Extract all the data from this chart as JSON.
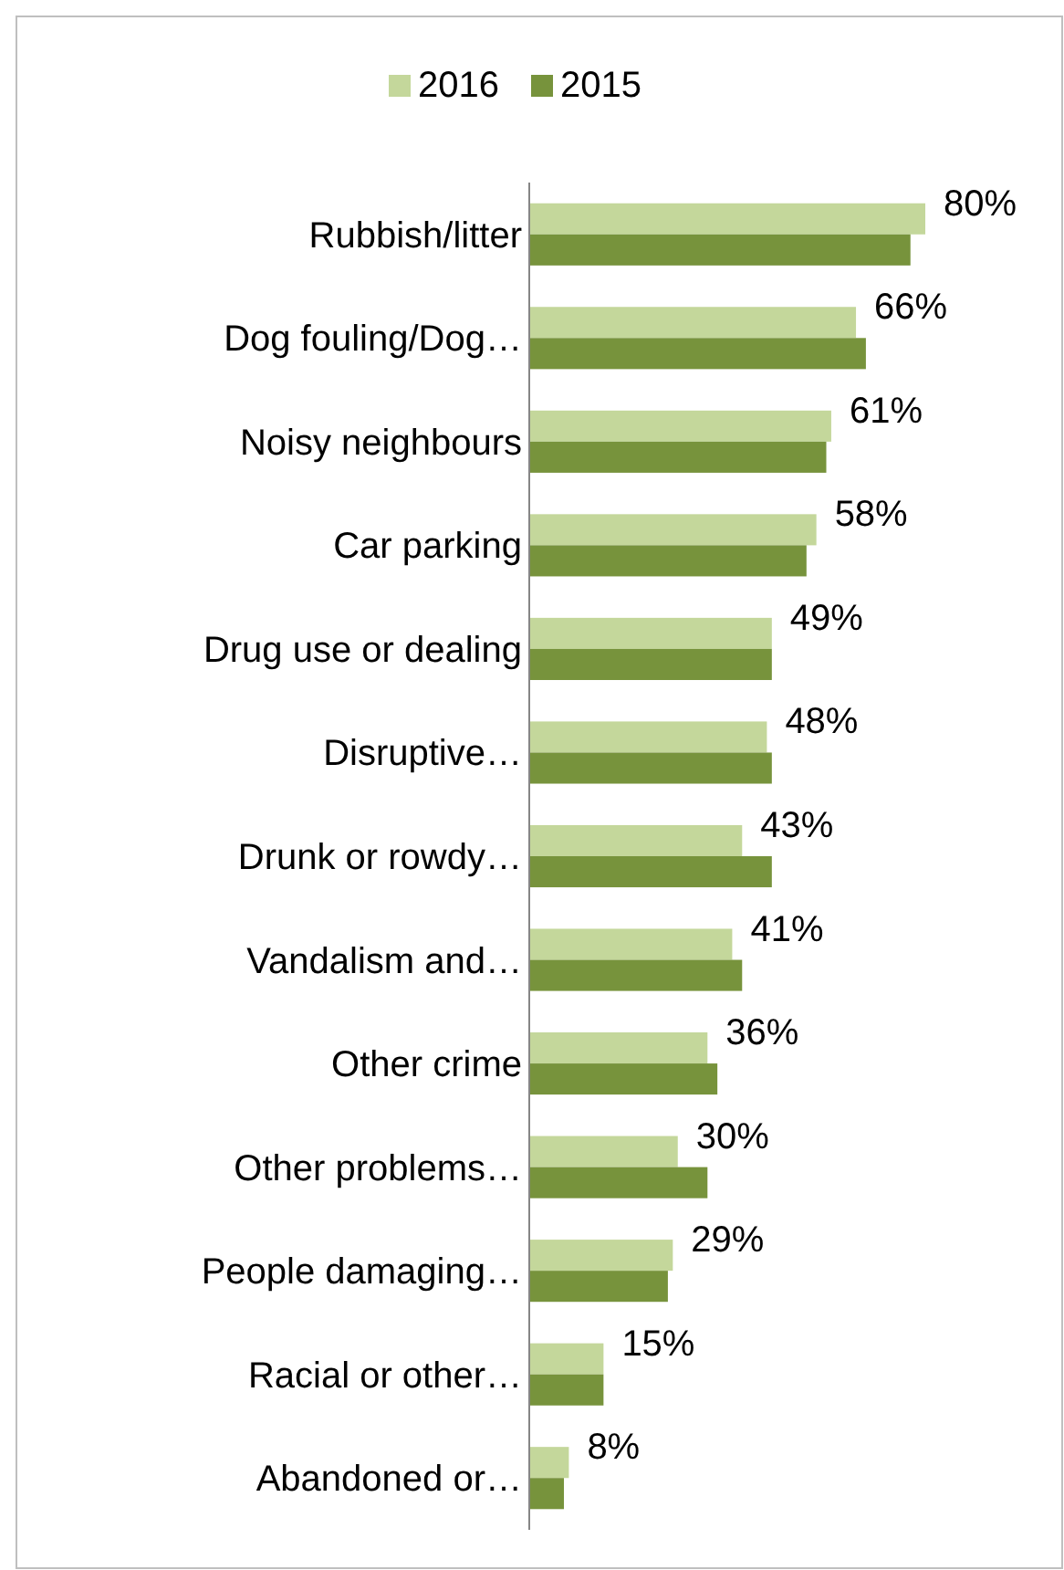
{
  "chart_data": {
    "type": "bar",
    "orientation": "horizontal",
    "legend": "top",
    "categories": [
      "Rubbish/litter",
      "Dog fouling/Dog…",
      "Noisy neighbours",
      "Car parking",
      "Drug use or dealing",
      "Disruptive…",
      "Drunk or rowdy…",
      "Vandalism and…",
      "Other crime",
      "Other problems…",
      "People damaging…",
      "Racial or other…",
      "Abandoned or…"
    ],
    "tick_labels": "y",
    "series": [
      {
        "name": "2016",
        "color": "#c4d79b",
        "values": [
          80,
          66,
          61,
          58,
          49,
          48,
          43,
          41,
          36,
          30,
          29,
          15,
          8
        ],
        "value_labels": [
          "80%",
          "66%",
          "61%",
          "58%",
          "49%",
          "48%",
          "43%",
          "41%",
          "36%",
          "30%",
          "29%",
          "15%",
          "8%"
        ]
      },
      {
        "name": "2015",
        "color": "#77933c",
        "values": [
          77,
          68,
          60,
          56,
          49,
          49,
          49,
          43,
          38,
          36,
          28,
          15,
          7
        ]
      }
    ]
  }
}
